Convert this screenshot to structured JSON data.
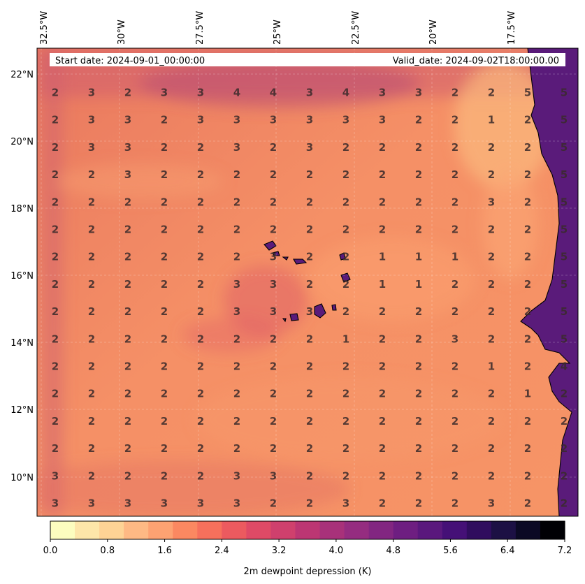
{
  "header": {
    "start_date": "Start date: 2024-09-01_00:00:00",
    "valid_date": "Valid_date: 2024-09-02T18:00:00.00"
  },
  "lon_labels": [
    "32.5°W",
    "30°W",
    "27.5°W",
    "25°W",
    "22.5°W",
    "20°W",
    "17.5°W"
  ],
  "lat_labels": [
    "22°N",
    "20°N",
    "18°N",
    "16°N",
    "14°N",
    "12°N",
    "10°N"
  ],
  "grid_values": [
    [
      2,
      3,
      2,
      3,
      3,
      4,
      4,
      3,
      4,
      3,
      3,
      2,
      2,
      5,
      5
    ],
    [
      2,
      3,
      3,
      2,
      3,
      3,
      3,
      3,
      3,
      3,
      2,
      2,
      1,
      2,
      5
    ],
    [
      2,
      3,
      3,
      2,
      2,
      3,
      2,
      3,
      2,
      2,
      2,
      2,
      2,
      2,
      5
    ],
    [
      2,
      2,
      3,
      2,
      2,
      2,
      2,
      2,
      2,
      2,
      2,
      2,
      2,
      2,
      5
    ],
    [
      2,
      2,
      2,
      2,
      2,
      2,
      2,
      2,
      2,
      2,
      2,
      2,
      3,
      2,
      5
    ],
    [
      2,
      2,
      2,
      2,
      2,
      2,
      2,
      2,
      2,
      2,
      2,
      2,
      2,
      2,
      5
    ],
    [
      2,
      2,
      2,
      2,
      2,
      2,
      3,
      2,
      2,
      1,
      1,
      1,
      2,
      2,
      5
    ],
    [
      2,
      2,
      2,
      2,
      2,
      3,
      3,
      2,
      2,
      1,
      1,
      2,
      2,
      2,
      5
    ],
    [
      2,
      2,
      2,
      2,
      2,
      3,
      3,
      3,
      2,
      2,
      2,
      2,
      2,
      2,
      5
    ],
    [
      2,
      2,
      2,
      2,
      2,
      2,
      2,
      2,
      1,
      2,
      2,
      3,
      2,
      2,
      5
    ],
    [
      2,
      2,
      2,
      2,
      2,
      2,
      2,
      2,
      2,
      2,
      2,
      2,
      1,
      2,
      4
    ],
    [
      2,
      2,
      2,
      2,
      2,
      2,
      2,
      2,
      2,
      2,
      2,
      2,
      2,
      1,
      2
    ],
    [
      2,
      2,
      2,
      2,
      2,
      2,
      2,
      2,
      2,
      2,
      2,
      2,
      2,
      2,
      2
    ],
    [
      2,
      2,
      2,
      2,
      2,
      2,
      2,
      2,
      2,
      2,
      2,
      2,
      2,
      2,
      2
    ],
    [
      3,
      2,
      2,
      2,
      2,
      3,
      3,
      2,
      2,
      2,
      2,
      2,
      2,
      2,
      2
    ],
    [
      3,
      3,
      3,
      3,
      3,
      3,
      2,
      2,
      3,
      2,
      2,
      2,
      3,
      2,
      2
    ]
  ],
  "colorbar": {
    "ticks": [
      "0.0",
      "0.8",
      "1.6",
      "2.4",
      "3.2",
      "4.0",
      "4.8",
      "5.6",
      "6.4",
      "7.2"
    ],
    "label": "2m dewpoint depression (K)",
    "colors": [
      "#fcfdbf",
      "#fde6a9",
      "#fed395",
      "#feb984",
      "#fda272",
      "#fb8861",
      "#f6705c",
      "#ec5a5f",
      "#df4a66",
      "#cf406d",
      "#bc3673",
      "#a8317a",
      "#952c80",
      "#822681",
      "#6e1e81",
      "#5a187d",
      "#451077",
      "#300d5e",
      "#1c1044",
      "#0b0924",
      "#000004"
    ]
  },
  "colors": {
    "ocean_base": "#f08a65",
    "land": "#5a1b7a",
    "coastline": "#000000"
  }
}
